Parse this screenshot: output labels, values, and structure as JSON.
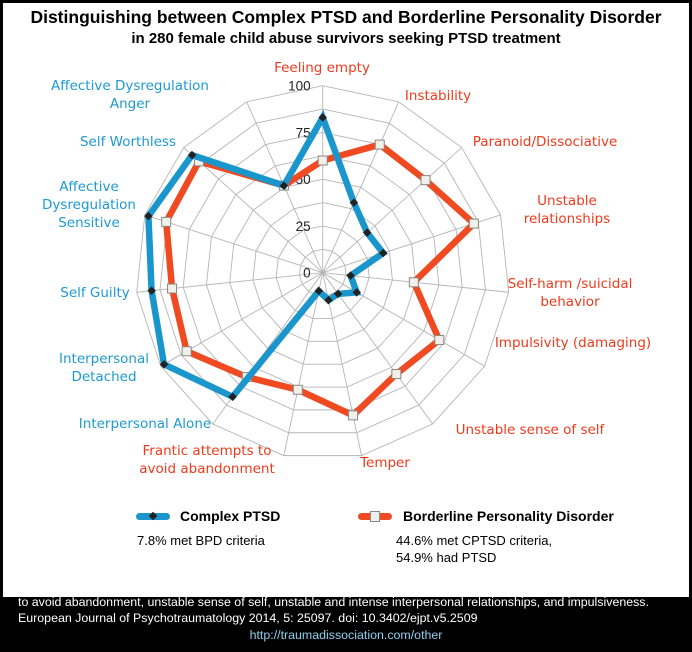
{
  "chart_data": {
    "type": "radar",
    "title": "Distinguishing between Complex PTSD and Borderline Personality Disorder",
    "subtitle": "in 280 female child abuse survivors seeking PTSD treatment",
    "categories": [
      {
        "label": [
          "Feeling empty"
        ],
        "color": "#ee3a1c"
      },
      {
        "label": [
          "Instability"
        ],
        "color": "#ee3a1c"
      },
      {
        "label": [
          "Paranoid/Dissociative"
        ],
        "color": "#ee3a1c"
      },
      {
        "label": [
          "Unstable",
          "relationships"
        ],
        "color": "#ee3a1c"
      },
      {
        "label": [
          "Self-harm /suicidal",
          "behavior"
        ],
        "color": "#ee3a1c"
      },
      {
        "label": [
          "Impulsivity (damaging)"
        ],
        "color": "#ee3a1c"
      },
      {
        "label": [
          "Unstable sense of self"
        ],
        "color": "#ee3a1c"
      },
      {
        "label": [
          "Temper"
        ],
        "color": "#ee3a1c"
      },
      {
        "label": [
          "Frantic attempts to",
          "avoid abandonment"
        ],
        "color": "#ee3a1c"
      },
      {
        "label": [
          "Interpersonal Alone"
        ],
        "color": "#1d9ad2"
      },
      {
        "label": [
          "Interpersonal",
          "Detached"
        ],
        "color": "#1d9ad2"
      },
      {
        "label": [
          "Self Guilty"
        ],
        "color": "#1d9ad2"
      },
      {
        "label": [
          "Affective",
          "Dysregulation",
          "Sensitive"
        ],
        "color": "#1d9ad2"
      },
      {
        "label": [
          "Self Worthless"
        ],
        "color": "#1d9ad2"
      },
      {
        "label": [
          "Affective Dysregulation",
          "Anger"
        ],
        "color": "#1d9ad2"
      }
    ],
    "rlim": [
      0,
      100
    ],
    "ticks": [
      "0",
      "25",
      "50",
      "75",
      "100"
    ],
    "grid": true,
    "series": [
      {
        "name": "Complex PTSD",
        "color": "#1b96cc",
        "marker": "diamond",
        "values": [
          83,
          41,
          32,
          34,
          15,
          21,
          14,
          15,
          10,
          82,
          98,
          92,
          98,
          94,
          51
        ]
      },
      {
        "name": "Borderline Personality Disorder",
        "color": "#f04a22",
        "marker": "square",
        "values": [
          60,
          75,
          74,
          85,
          49,
          72,
          67,
          78,
          64,
          69,
          84,
          81,
          88,
          89,
          51
        ]
      }
    ],
    "legend_position": "bottom"
  },
  "notes": {
    "cptsd": "7.8% met BPD criteria",
    "bpd_line1": "44.6% met CPTSD criteria,",
    "bpd_line2": "54.9% had PTSD"
  },
  "footer": {
    "text": "Four BPD symptoms greatly increased the odds of being in the BPD compared to the Complex PTSD class: frantic efforts to avoid abandonment, unstable sense of self, unstable and intense interpersonal relationships, and impulsiveness. European Journal of Psychotraumatology 2014, 5: 25097. doi: 10.3402/ejpt.v5.2509",
    "url": "http://traumadissociation.com/other"
  }
}
